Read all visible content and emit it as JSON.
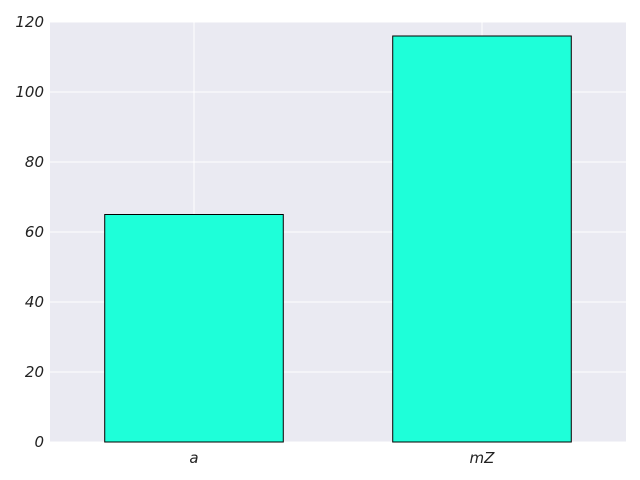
{
  "chart_data": {
    "type": "bar",
    "categories": [
      "a",
      "mZ"
    ],
    "values": [
      65,
      116
    ],
    "title": "",
    "xlabel": "",
    "ylabel": "",
    "ylim": [
      0,
      120
    ],
    "yticks": [
      0,
      20,
      40,
      60,
      80,
      100,
      120
    ],
    "grid": true,
    "legend": "none"
  },
  "colors": {
    "plot_background": "#EAEAF2",
    "grid": "#FFFFFF",
    "bar_fill": "#1EFFD9",
    "bar_edge": "#000000"
  }
}
